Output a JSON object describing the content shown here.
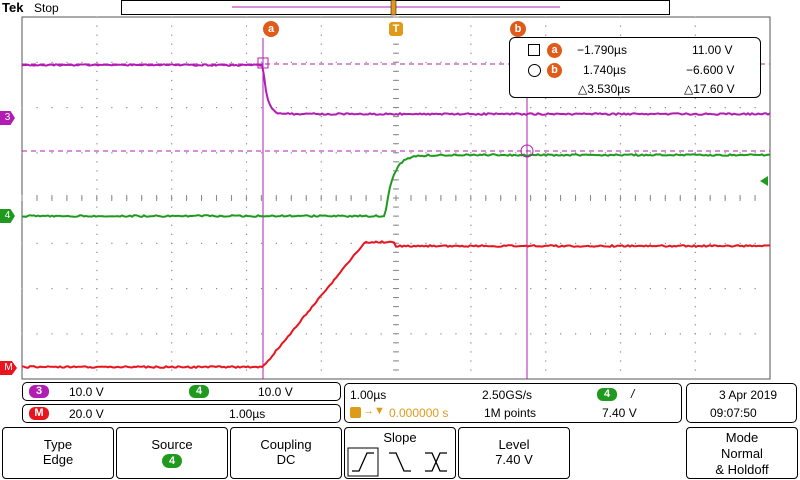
{
  "header": {
    "brand": "Tek",
    "run_state": "Stop"
  },
  "trigger_marker": {
    "label": "T"
  },
  "cursors": {
    "a_label": "a",
    "b_label": "b"
  },
  "readout": {
    "a_time": "−1.790µs",
    "a_volt": "11.00 V",
    "b_time": "1.740µs",
    "b_volt": "−6.600 V",
    "delta_time": "△3.530µs",
    "delta_volt": "△17.60 V"
  },
  "channel_markers": {
    "ch3": "3",
    "ch4": "4",
    "math": "M"
  },
  "status": {
    "ch3_num": "3",
    "ch3_scale": "10.0 V",
    "ch4_num": "4",
    "ch4_scale": "10.0 V",
    "math_label": "M",
    "math_scale": "20.0 V",
    "math_time": "1.00µs",
    "timebase": "1.00µs",
    "sample_rate": "2.50GS/s",
    "trig_source": "4",
    "trig_slope_glyph": "/",
    "trig_pos": "0.000000 s",
    "record_length": "1M points",
    "trig_level": "7.40 V",
    "date": "3 Apr  2019",
    "time": "09:07:50"
  },
  "menu": {
    "type_label": "Type",
    "type_value": "Edge",
    "source_label": "Source",
    "source_value": "4",
    "coupling_label": "Coupling",
    "coupling_value": "DC",
    "slope_label": "Slope",
    "level_label": "Level",
    "level_value": "7.40 V",
    "mode_label": "Mode",
    "mode_value1": "Normal",
    "mode_value2": "& Holdoff"
  },
  "colors": {
    "ch3": "#b21cb2",
    "ch4": "#1f9a1f",
    "math": "#e8141e",
    "cursor_marker": "#e05a1a",
    "trigger": "#e09a1a"
  }
}
